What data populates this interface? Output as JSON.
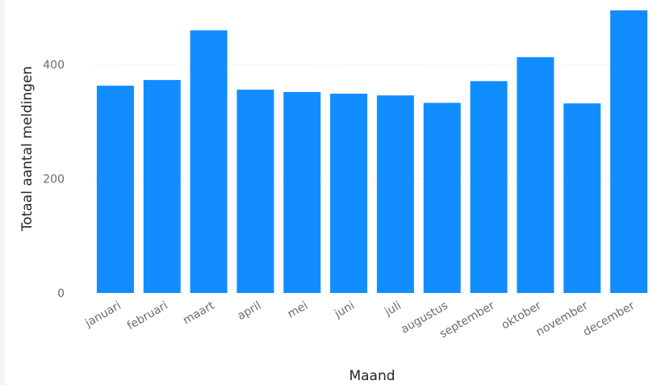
{
  "chart_data": {
    "type": "bar",
    "title": "",
    "xlabel": "Maand",
    "ylabel": "Totaal aantal meldingen",
    "categories": [
      "januari",
      "februari",
      "maart",
      "april",
      "mei",
      "juni",
      "juli",
      "augustus",
      "september",
      "oktober",
      "november",
      "december"
    ],
    "values": [
      363,
      373,
      460,
      356,
      352,
      349,
      346,
      333,
      371,
      413,
      332,
      495
    ],
    "yticks": [
      0,
      200,
      400
    ],
    "ylim": [
      0,
      495
    ],
    "grid": true,
    "bar_color": "#118DFF",
    "legend": "none"
  }
}
